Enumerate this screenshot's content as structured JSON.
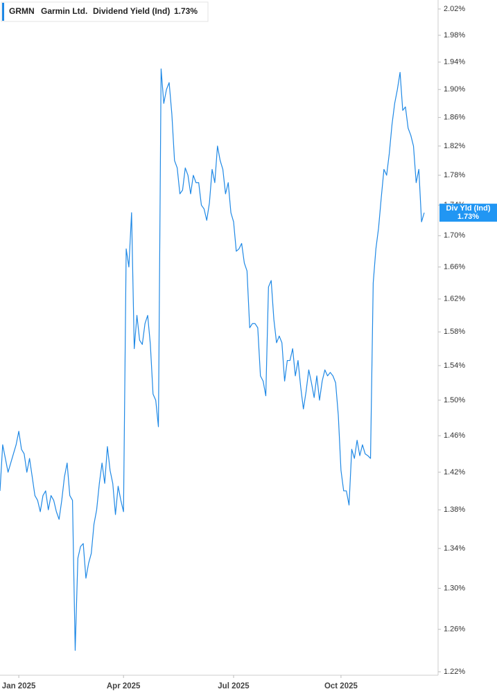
{
  "chart_data": {
    "type": "line",
    "legend": {
      "ticker": "GRMN",
      "company": "Garmin Ltd.",
      "value_label": "1.73%"
    },
    "badge": {
      "label": "Div Yld (Ind)",
      "value": 1.73,
      "value_label": "1.73%"
    },
    "log": true,
    "ylim": [
      1.22,
      2.02
    ],
    "yticks": [
      {
        "value": 1.22,
        "label": "1.22%"
      },
      {
        "value": 1.26,
        "label": "1.26%"
      },
      {
        "value": 1.3,
        "label": "1.30%"
      },
      {
        "value": 1.34,
        "label": "1.34%"
      },
      {
        "value": 1.38,
        "label": "1.38%"
      },
      {
        "value": 1.42,
        "label": "1.42%"
      },
      {
        "value": 1.46,
        "label": "1.46%"
      },
      {
        "value": 1.5,
        "label": "1.50%"
      },
      {
        "value": 1.54,
        "label": "1.54%"
      },
      {
        "value": 1.58,
        "label": "1.58%"
      },
      {
        "value": 1.62,
        "label": "1.62%"
      },
      {
        "value": 1.66,
        "label": "1.66%"
      },
      {
        "value": 1.7,
        "label": "1.70%"
      },
      {
        "value": 1.74,
        "label": "1.74%"
      },
      {
        "value": 1.78,
        "label": "1.78%"
      },
      {
        "value": 1.82,
        "label": "1.82%"
      },
      {
        "value": 1.86,
        "label": "1.86%"
      },
      {
        "value": 1.9,
        "label": "1.90%"
      },
      {
        "value": 1.94,
        "label": "1.94%"
      },
      {
        "value": 1.98,
        "label": "1.98%"
      },
      {
        "value": 2.02,
        "label": "2.02%"
      }
    ],
    "categories": [
      null,
      null,
      null,
      null,
      null,
      null,
      null,
      "Jan 2025",
      null,
      null,
      null,
      null,
      null,
      null,
      null,
      null,
      null,
      null,
      null,
      null,
      null,
      null,
      null,
      null,
      null,
      null,
      null,
      null,
      null,
      null,
      null,
      null,
      null,
      null,
      null,
      null,
      null,
      null,
      null,
      null,
      null,
      null,
      null,
      null,
      null,
      null,
      "Apr 2025",
      null,
      null,
      null,
      null,
      null,
      null,
      null,
      null,
      null,
      null,
      null,
      null,
      null,
      null,
      null,
      null,
      null,
      null,
      null,
      null,
      null,
      null,
      null,
      null,
      null,
      null,
      null,
      null,
      null,
      null,
      null,
      null,
      null,
      null,
      null,
      null,
      null,
      null,
      null,
      null,
      "Jul 2025",
      null,
      null,
      null,
      null,
      null,
      null,
      null,
      null,
      null,
      null,
      null,
      null,
      null,
      null,
      null,
      null,
      null,
      null,
      null,
      null,
      null,
      null,
      null,
      null,
      null,
      null,
      null,
      null,
      null,
      null,
      null,
      null,
      null,
      null,
      null,
      null,
      null,
      null,
      null,
      "Oct 2025",
      null,
      null,
      null,
      null,
      null,
      null,
      null,
      null,
      null,
      null,
      null,
      null,
      null,
      null,
      null,
      null,
      null,
      null,
      null,
      null,
      null,
      null,
      null,
      null,
      null,
      null,
      null,
      null,
      null,
      null,
      null
    ],
    "series": [
      {
        "name": "Dividend Yield (Ind)",
        "color": "#1e88e5",
        "values": [
          1.4,
          1.45,
          1.435,
          1.42,
          1.43,
          1.44,
          1.45,
          1.465,
          1.445,
          1.44,
          1.42,
          1.435,
          1.415,
          1.395,
          1.39,
          1.378,
          1.395,
          1.4,
          1.38,
          1.395,
          1.39,
          1.378,
          1.37,
          1.39,
          1.415,
          1.43,
          1.395,
          1.39,
          1.24,
          1.33,
          1.342,
          1.345,
          1.31,
          1.325,
          1.335,
          1.365,
          1.38,
          1.408,
          1.43,
          1.408,
          1.448,
          1.422,
          1.408,
          1.375,
          1.405,
          1.39,
          1.378,
          1.683,
          1.66,
          1.73,
          1.56,
          1.6,
          1.57,
          1.565,
          1.59,
          1.6,
          1.565,
          1.507,
          1.5,
          1.47,
          1.93,
          1.88,
          1.9,
          1.91,
          1.865,
          1.8,
          1.79,
          1.755,
          1.76,
          1.79,
          1.78,
          1.755,
          1.78,
          1.77,
          1.77,
          1.74,
          1.735,
          1.72,
          1.743,
          1.788,
          1.77,
          1.82,
          1.8,
          1.788,
          1.755,
          1.77,
          1.73,
          1.718,
          1.68,
          1.683,
          1.69,
          1.665,
          1.655,
          1.585,
          1.59,
          1.59,
          1.585,
          1.528,
          1.522,
          1.505,
          1.635,
          1.643,
          1.595,
          1.567,
          1.575,
          1.567,
          1.522,
          1.546,
          1.546,
          1.56,
          1.528,
          1.546,
          1.515,
          1.49,
          1.51,
          1.535,
          1.52,
          1.503,
          1.528,
          1.5,
          1.522,
          1.535,
          1.528,
          1.532,
          1.528,
          1.52,
          1.483,
          1.422,
          1.4,
          1.4,
          1.385,
          1.445,
          1.435,
          1.455,
          1.438,
          1.45,
          1.44,
          1.438,
          1.435,
          1.64,
          1.683,
          1.71,
          1.75,
          1.788,
          1.78,
          1.81,
          1.85,
          1.88,
          1.9,
          1.925,
          1.87,
          1.875,
          1.845,
          1.835,
          1.82,
          1.77,
          1.788,
          1.718,
          1.73
        ]
      }
    ]
  }
}
